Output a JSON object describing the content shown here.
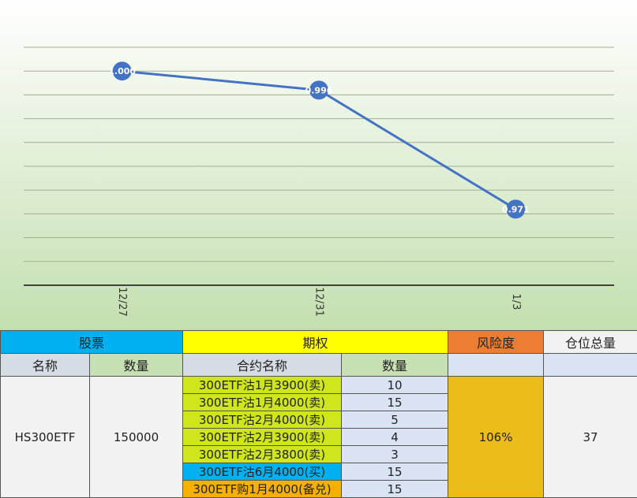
{
  "chart_data": {
    "type": "line",
    "categories": [
      "12/27",
      "12/31",
      "1/3"
    ],
    "values": [
      1.0,
      0.996,
      0.971
    ],
    "value_labels": [
      "1.000",
      "0.996",
      "0.971"
    ],
    "color": "#4472c4",
    "ylim": [
      0.955,
      1.005
    ],
    "yticks": [
      0.955,
      0.96,
      0.965,
      0.97,
      0.975,
      0.98,
      0.985,
      0.99,
      0.995,
      1.0,
      1.005
    ],
    "grid": true
  },
  "table": {
    "group_headers": [
      "股票",
      "期权",
      "风险度",
      "仓位总量"
    ],
    "column_headers": [
      "名称",
      "数量",
      "合约名称",
      "数量"
    ],
    "stock": {
      "name": "HS300ETF",
      "quantity": 150000
    },
    "options": [
      {
        "name": "300ETF沽1月3900(卖)",
        "quantity": 10,
        "color": "#cfe51c"
      },
      {
        "name": "300ETF沽1月4000(卖)",
        "quantity": 15,
        "color": "#cfe51c"
      },
      {
        "name": "300ETF沽2月4000(卖)",
        "quantity": 5,
        "color": "#cfe51c"
      },
      {
        "name": "300ETF沽2月3900(卖)",
        "quantity": 4,
        "color": "#cfe51c"
      },
      {
        "name": "300ETF沽2月3800(卖)",
        "quantity": 3,
        "color": "#cfe51c"
      },
      {
        "name": "300ETF沽6月4000(买)",
        "quantity": 15,
        "color": "#00b0f0"
      },
      {
        "name": "300ETF购1月4000(备兑)",
        "quantity": 15,
        "color": "#f5b000"
      }
    ],
    "risk": "106%",
    "total_position": 37
  }
}
